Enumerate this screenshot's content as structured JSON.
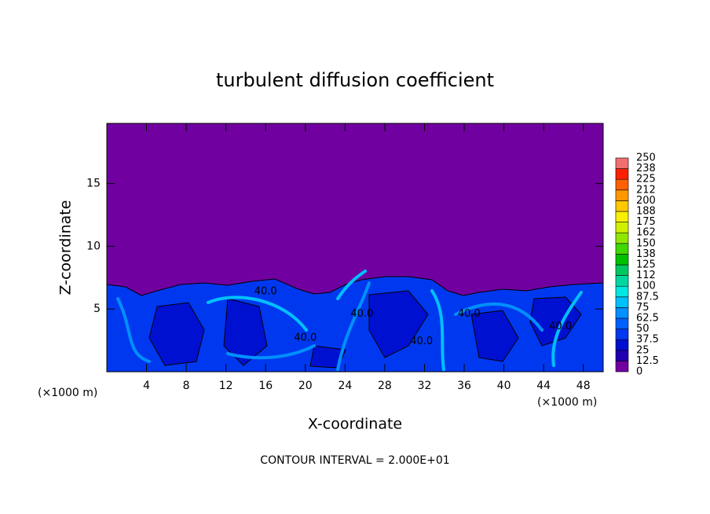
{
  "chart_data": {
    "type": "contour",
    "title": "turbulent diffusion coefficient",
    "x_label": "X-coordinate",
    "y_label": "Z-coordinate",
    "x_scale_label": "(×1000 m)",
    "y_scale_label": "(×1000 m)",
    "note": "CONTOUR INTERVAL = 2.000E+01",
    "xlim": [
      0,
      50
    ],
    "ylim": [
      0,
      19.8
    ],
    "xticks": [
      4,
      8,
      12,
      16,
      20,
      24,
      28,
      32,
      36,
      40,
      44,
      48
    ],
    "yticks": [
      5,
      10,
      15
    ],
    "colorbar": {
      "levels": [
        0,
        12.5,
        25,
        37.5,
        50,
        62.5,
        75,
        87.5,
        100,
        112,
        125,
        138,
        150,
        162,
        175,
        188,
        200,
        212,
        225,
        238,
        250
      ],
      "colors": [
        "#7000a0",
        "#2000b0",
        "#0010d0",
        "#0038f0",
        "#0060ff",
        "#0090ff",
        "#00c0ff",
        "#00e8e0",
        "#00d8a0",
        "#00c860",
        "#00c000",
        "#40d800",
        "#90e800",
        "#d0f000",
        "#f8f000",
        "#ffc800",
        "#ff9800",
        "#ff6000",
        "#ff2000",
        "#f07070"
      ]
    },
    "contour_labels": [
      {
        "x": 16.0,
        "y": 6.4,
        "text": "40.0"
      },
      {
        "x": 25.7,
        "y": 4.6,
        "text": "40.0"
      },
      {
        "x": 20.0,
        "y": 2.7,
        "text": "40.0"
      },
      {
        "x": 31.7,
        "y": 2.4,
        "text": "40.0"
      },
      {
        "x": 36.5,
        "y": 4.6,
        "text": "40.0"
      },
      {
        "x": 45.7,
        "y": 3.6,
        "text": "40.0"
      }
    ]
  }
}
